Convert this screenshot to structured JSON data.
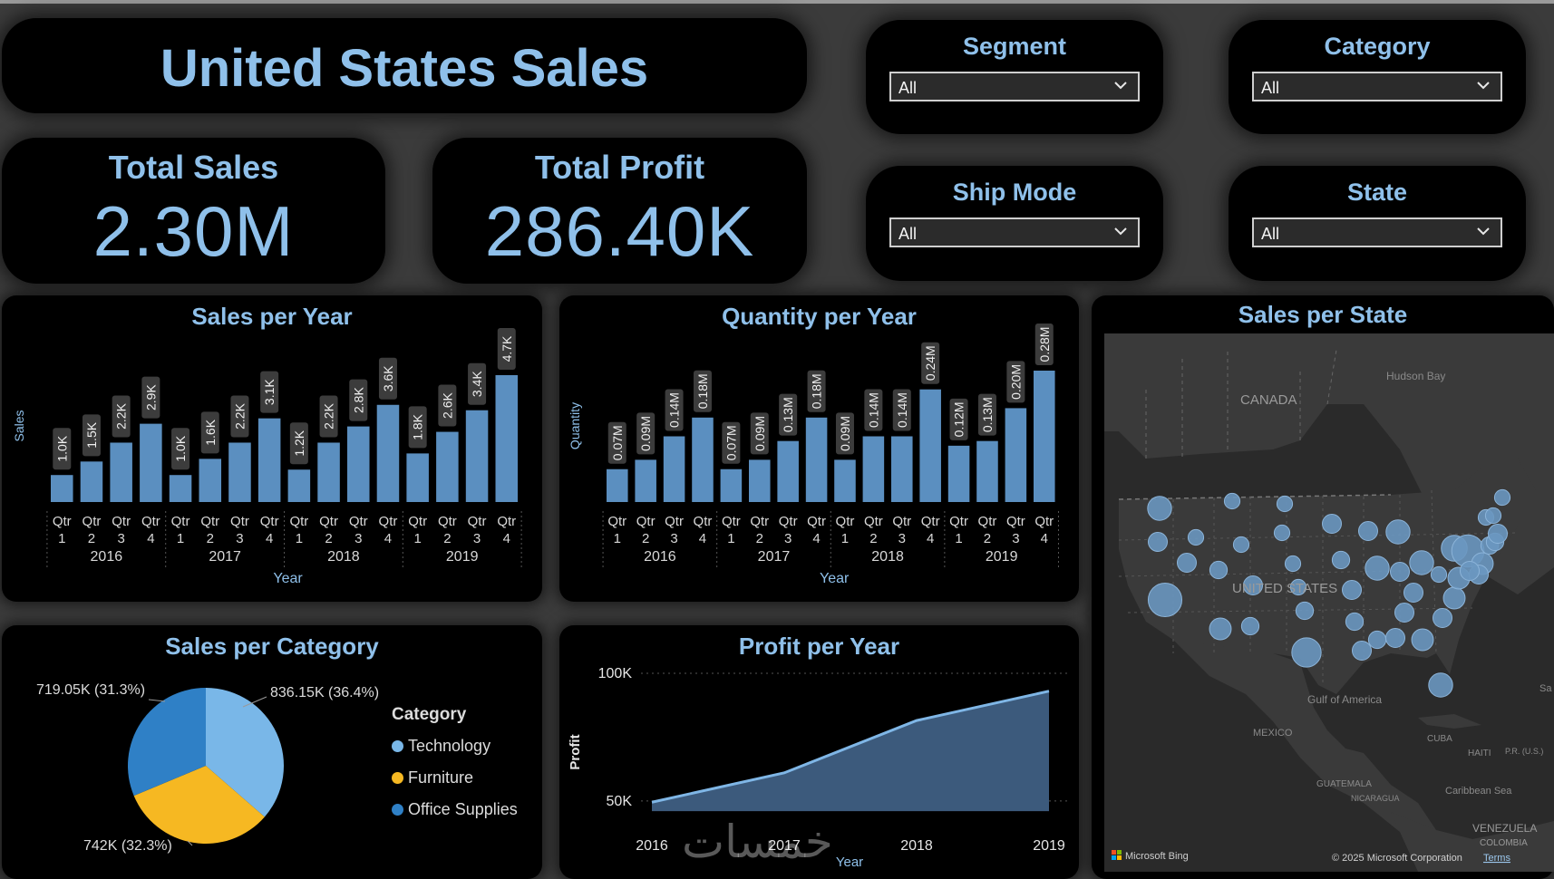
{
  "header": {
    "title": "United States Sales"
  },
  "kpis": {
    "total_sales": {
      "label": "Total Sales",
      "value": "2.30M"
    },
    "total_profit": {
      "label": "Total Profit",
      "value": "286.40K"
    }
  },
  "slicers": [
    {
      "label": "Segment",
      "value": "All"
    },
    {
      "label": "Category",
      "value": "All"
    },
    {
      "label": "Ship Mode",
      "value": "All"
    },
    {
      "label": "State",
      "value": "All"
    }
  ],
  "colors": {
    "bar": "#5b8fc0",
    "title": "#8fc0ea",
    "technology": "#79b7e8",
    "furniture": "#f6b822",
    "office_supplies": "#2f80c6",
    "area_fill": "#3c5a7c",
    "area_line": "#7fb6e6"
  },
  "chart_data": [
    {
      "id": "sales_per_year",
      "type": "bar",
      "title": "Sales per Year",
      "xlabel": "Year",
      "ylabel": "Sales",
      "categories": [
        "Qtr 1",
        "Qtr 2",
        "Qtr 3",
        "Qtr 4",
        "Qtr 1",
        "Qtr 2",
        "Qtr 3",
        "Qtr 4",
        "Qtr 1",
        "Qtr 2",
        "Qtr 3",
        "Qtr 4",
        "Qtr 1",
        "Qtr 2",
        "Qtr 3",
        "Qtr 4"
      ],
      "years": [
        "2016",
        "2017",
        "2018",
        "2019"
      ],
      "values": [
        1.0,
        1.5,
        2.2,
        2.9,
        1.0,
        1.6,
        2.2,
        3.1,
        1.2,
        2.2,
        2.8,
        3.6,
        1.8,
        2.6,
        3.4,
        4.7
      ],
      "data_labels": [
        "1.0K",
        "1.5K",
        "2.2K",
        "2.9K",
        "1.0K",
        "1.6K",
        "2.2K",
        "3.1K",
        "1.2K",
        "2.2K",
        "2.8K",
        "3.6K",
        "1.8K",
        "2.6K",
        "3.4K",
        "4.7K"
      ],
      "ylim": [
        0,
        4.7
      ]
    },
    {
      "id": "quantity_per_year",
      "type": "bar",
      "title": "Quantity per Year",
      "xlabel": "Year",
      "ylabel": "Quantity",
      "categories": [
        "Qtr 1",
        "Qtr 2",
        "Qtr 3",
        "Qtr 4",
        "Qtr 1",
        "Qtr 2",
        "Qtr 3",
        "Qtr 4",
        "Qtr 1",
        "Qtr 2",
        "Qtr 3",
        "Qtr 4",
        "Qtr 1",
        "Qtr 2",
        "Qtr 3",
        "Qtr 4"
      ],
      "years": [
        "2016",
        "2017",
        "2018",
        "2019"
      ],
      "values": [
        0.07,
        0.09,
        0.14,
        0.18,
        0.07,
        0.09,
        0.13,
        0.18,
        0.09,
        0.14,
        0.14,
        0.24,
        0.12,
        0.13,
        0.2,
        0.28
      ],
      "data_labels": [
        "0.07M",
        "0.09M",
        "0.14M",
        "0.18M",
        "0.07M",
        "0.09M",
        "0.13M",
        "0.18M",
        "0.09M",
        "0.14M",
        "0.14M",
        "0.24M",
        "0.12M",
        "0.13M",
        "0.20M",
        "0.28M"
      ],
      "ylim": [
        0,
        0.28
      ]
    },
    {
      "id": "sales_per_category",
      "type": "pie",
      "title": "Sales per Category",
      "legend_title": "Category",
      "slices": [
        {
          "name": "Technology",
          "value": 836.15,
          "label": "836.15K (36.4%)",
          "color": "#79b7e8"
        },
        {
          "name": "Furniture",
          "value": 742,
          "label": "742K (32.3%)",
          "color": "#f6b822"
        },
        {
          "name": "Office Supplies",
          "value": 719.05,
          "label": "719.05K (31.3%)",
          "color": "#2f80c6"
        }
      ]
    },
    {
      "id": "profit_per_year",
      "type": "area",
      "title": "Profit per Year",
      "xlabel": "Year",
      "ylabel": "Profit",
      "x": [
        "2016",
        "2017",
        "2018",
        "2019"
      ],
      "values": [
        49.5,
        61,
        81.5,
        93
      ],
      "yticks": [
        {
          "value": 50,
          "label": "50K"
        },
        {
          "value": 100,
          "label": "100K"
        }
      ],
      "ylim": [
        40,
        100
      ]
    }
  ],
  "map": {
    "title": "Sales per State",
    "labels": {
      "hudson_bay": "Hudson Bay",
      "canada": "CANADA",
      "united_states": "UNITED STATES",
      "gulf": "Gulf of America",
      "mexico": "MEXICO",
      "cuba": "CUBA",
      "haiti": "HAITI",
      "caribbean": "Caribbean Sea",
      "guatemala": "GUATEMALA",
      "nicaragua": "NICARAGUA",
      "venezuela": "VENEZUELA",
      "colombia": "COLOMBIA",
      "sa": "Sa",
      "pr": "P.R. (U.S.)"
    },
    "attribution": {
      "logo": "Microsoft Bing",
      "copyright": "© 2025 Microsoft Corporation",
      "terms": "Terms"
    },
    "bubbles": [
      {
        "id": "WA",
        "v": 4
      },
      {
        "id": "OR",
        "v": 2
      },
      {
        "id": "CA",
        "v": 10
      },
      {
        "id": "NV",
        "v": 2
      },
      {
        "id": "ID",
        "v": 1
      },
      {
        "id": "AZ",
        "v": 3
      },
      {
        "id": "UT",
        "v": 1.5
      },
      {
        "id": "CO",
        "v": 2
      },
      {
        "id": "NM",
        "v": 1.5
      },
      {
        "id": "TX",
        "v": 7
      },
      {
        "id": "OK",
        "v": 1.5
      },
      {
        "id": "KS",
        "v": 1
      },
      {
        "id": "NE",
        "v": 1
      },
      {
        "id": "SD",
        "v": 1
      },
      {
        "id": "MN",
        "v": 2
      },
      {
        "id": "IA",
        "v": 1.5
      },
      {
        "id": "MO",
        "v": 2
      },
      {
        "id": "AR",
        "v": 1.5
      },
      {
        "id": "LA",
        "v": 2
      },
      {
        "id": "WI",
        "v": 2
      },
      {
        "id": "IL",
        "v": 4
      },
      {
        "id": "MI",
        "v": 4
      },
      {
        "id": "IN",
        "v": 2
      },
      {
        "id": "OH",
        "v": 4
      },
      {
        "id": "KY",
        "v": 2
      },
      {
        "id": "TN",
        "v": 2
      },
      {
        "id": "MS",
        "v": 1.5
      },
      {
        "id": "AL",
        "v": 2
      },
      {
        "id": "GA",
        "v": 3
      },
      {
        "id": "FL",
        "v": 4
      },
      {
        "id": "SC",
        "v": 2
      },
      {
        "id": "NC",
        "v": 3
      },
      {
        "id": "VA",
        "v": 3
      },
      {
        "id": "WV",
        "v": 1
      },
      {
        "id": "PA",
        "v": 5
      },
      {
        "id": "NY",
        "v": 9
      },
      {
        "id": "NJ",
        "v": 3
      },
      {
        "id": "DE",
        "v": 2
      },
      {
        "id": "MD",
        "v": 2
      },
      {
        "id": "CT",
        "v": 1.5
      },
      {
        "id": "RI",
        "v": 1.5
      },
      {
        "id": "MA",
        "v": 2
      },
      {
        "id": "VT",
        "v": 1
      },
      {
        "id": "NH",
        "v": 1
      },
      {
        "id": "ME",
        "v": 1
      },
      {
        "id": "MT",
        "v": 1
      },
      {
        "id": "WY",
        "v": 1
      },
      {
        "id": "ND",
        "v": 1
      }
    ]
  },
  "watermark": "خمسات"
}
